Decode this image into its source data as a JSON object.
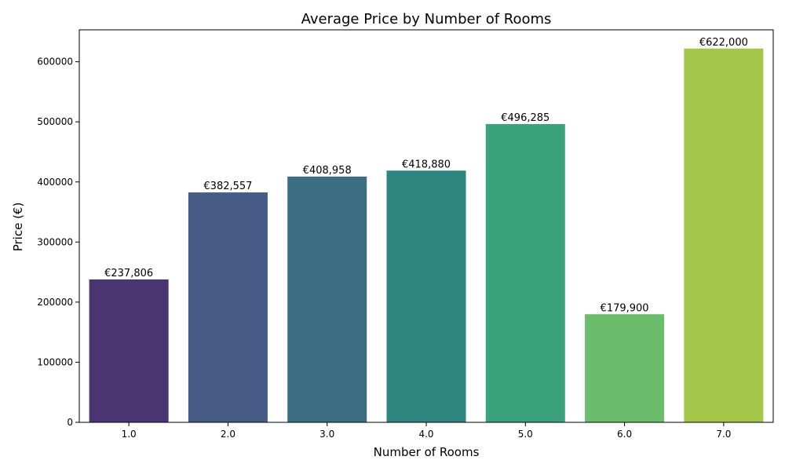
{
  "chart_data": {
    "type": "bar",
    "title": "Average Price by Number of Rooms",
    "xlabel": "Number of Rooms",
    "ylabel": "Price (€)",
    "categories": [
      "1.0",
      "2.0",
      "3.0",
      "4.0",
      "5.0",
      "6.0",
      "7.0"
    ],
    "values": [
      237806,
      382557,
      408958,
      418880,
      496285,
      179900,
      622000
    ],
    "data_labels": [
      "€237,806",
      "€382,557",
      "€408,958",
      "€418,880",
      "€496,285",
      "€179,900",
      "€622,000"
    ],
    "colors": [
      "#4a3572",
      "#465a86",
      "#3b6d83",
      "#2f8680",
      "#3ca17d",
      "#6bbd6c",
      "#a4c74a"
    ],
    "ylim": [
      0,
      653100
    ],
    "yticks": [
      0,
      100000,
      200000,
      300000,
      400000,
      500000,
      600000
    ],
    "ytick_labels": [
      "0",
      "100000",
      "200000",
      "300000",
      "400000",
      "500000",
      "600000"
    ],
    "grid": false,
    "legend": "none"
  }
}
